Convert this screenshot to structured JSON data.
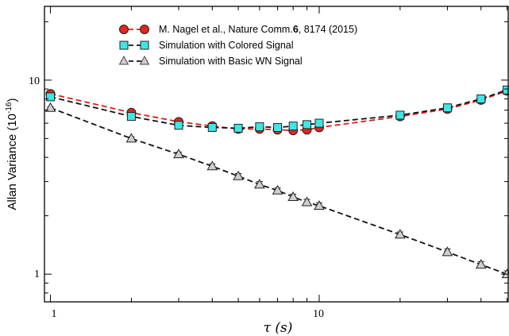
{
  "chart_data": {
    "type": "scatter",
    "title": "",
    "xlabel": "τ (s)",
    "ylabel": "Allan Variance (10",
    "ylabel_exponent": "-16",
    "ylabel_close": ")",
    "x_scale": "log",
    "y_scale": "log",
    "xlim": [
      0.95,
      50.5
    ],
    "ylim": [
      0.72,
      24
    ],
    "x_ticks": [
      1,
      10
    ],
    "x_tick_labels": [
      "1",
      "10"
    ],
    "y_ticks": [
      1,
      10
    ],
    "y_tick_labels": [
      "1",
      "10"
    ],
    "grid": false,
    "legend_position": "top-left",
    "series": [
      {
        "name": "M. Nagel et al., Nature Comm.6, 8174 (2015)",
        "legend_parts": [
          "M. Nagel et al., Nature Comm.",
          "6",
          ", 8174 (2015)"
        ],
        "marker": "circle",
        "color": "#e0261e",
        "line_color": "#d91f1f",
        "x": [
          1,
          2,
          3,
          4,
          5,
          6,
          7,
          8,
          9,
          10,
          20,
          30,
          40,
          50
        ],
        "y": [
          8.5,
          6.8,
          6.1,
          5.8,
          5.6,
          5.6,
          5.55,
          5.5,
          5.55,
          5.7,
          6.5,
          7.1,
          7.9,
          8.8
        ],
        "err": [
          0.2,
          0.15,
          0.15,
          0.15,
          0.15,
          0.15,
          0.15,
          0.15,
          0.15,
          0.15,
          0.2,
          0.2,
          0.2,
          0.25
        ]
      },
      {
        "name": "Simulation with Colored Signal",
        "marker": "square",
        "color": "#3fe6e6",
        "line_color": "#111111",
        "x": [
          1,
          2,
          3,
          4,
          5,
          6,
          7,
          8,
          9,
          10,
          20,
          30,
          40,
          50
        ],
        "y": [
          8.2,
          6.5,
          5.85,
          5.7,
          5.65,
          5.75,
          5.7,
          5.8,
          5.9,
          6.0,
          6.6,
          7.2,
          8.0,
          8.9
        ],
        "err": [
          0.25,
          0.25,
          0.25,
          0.25,
          0.25,
          0.25,
          0.25,
          0.25,
          0.25,
          0.25,
          0.25,
          0.25,
          0.25,
          0.25
        ]
      },
      {
        "name": "Simulation with Basic WN Signal",
        "marker": "triangle",
        "color": "#cfcfcf",
        "line_color": "#111111",
        "x": [
          1,
          2,
          3,
          4,
          5,
          6,
          7,
          8,
          9,
          10,
          20,
          30,
          40,
          50
        ],
        "y": [
          7.2,
          5.0,
          4.15,
          3.6,
          3.2,
          2.9,
          2.7,
          2.5,
          2.35,
          2.25,
          1.6,
          1.3,
          1.12,
          1.0
        ],
        "err": [
          0.1,
          0.1,
          0.1,
          0.1,
          0.1,
          0.1,
          0.08,
          0.08,
          0.08,
          0.08,
          0.05,
          0.05,
          0.04,
          0.04
        ]
      }
    ]
  }
}
